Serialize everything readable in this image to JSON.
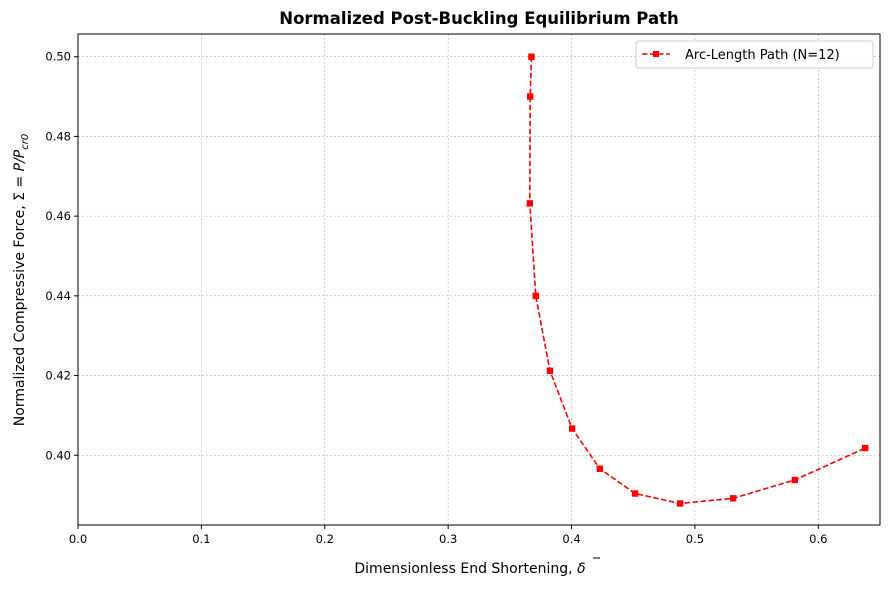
{
  "chart_data": {
    "type": "line",
    "title": "Normalized Post-Buckling Equilibrium Path",
    "xlabel_main": "Dimensionless End Shortening, ",
    "xlabel_symbol": "δ",
    "ylabel_main": "Normalized Compressive Force, Σ = ",
    "ylabel_symbol": "P/P",
    "ylabel_subscript": "cr0",
    "xlim": [
      0.0,
      0.65
    ],
    "ylim": [
      0.3825,
      0.5057
    ],
    "xticks": [
      0.0,
      0.1,
      0.2,
      0.3,
      0.4,
      0.5,
      0.6
    ],
    "xtick_labels": [
      "0.0",
      "0.1",
      "0.2",
      "0.3",
      "0.4",
      "0.5",
      "0.6"
    ],
    "yticks": [
      0.4,
      0.42,
      0.44,
      0.46,
      0.48,
      0.5
    ],
    "ytick_labels": [
      "0.40",
      "0.42",
      "0.44",
      "0.46",
      "0.48",
      "0.50"
    ],
    "grid": true,
    "legend_position": "top-right",
    "series": [
      {
        "name": "Arc-Length Path (N=12)",
        "color": "#ff0000",
        "line_style": "dashed",
        "marker": "square",
        "x": [
          0.3675,
          0.3665,
          0.3662,
          0.371,
          0.3825,
          0.4005,
          0.423,
          0.4515,
          0.488,
          0.531,
          0.581,
          0.638
        ],
        "y": [
          0.5,
          0.49,
          0.4632,
          0.44,
          0.4212,
          0.4067,
          0.3966,
          0.3904,
          0.3879,
          0.3892,
          0.3938,
          0.4018
        ]
      }
    ]
  }
}
